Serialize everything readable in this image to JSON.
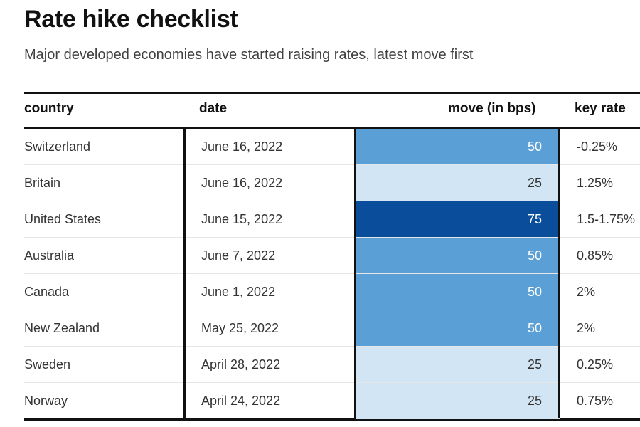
{
  "title": "Rate hike checklist",
  "subtitle": "Major developed economies have started raising rates, latest move first",
  "columns": {
    "country": "country",
    "date": "date",
    "move": "move (in bps)",
    "key_rate": "key rate"
  },
  "colors": {
    "move_25": "#d2e5f4",
    "move_50": "#5a9fd6",
    "move_75": "#0a4d9a",
    "text_on_light": "#333333",
    "text_on_dark": "#ffffff"
  },
  "chart_data": {
    "type": "table",
    "title": "Rate hike checklist",
    "subtitle": "Major developed economies have started raising rates, latest move first",
    "columns": [
      "country",
      "date",
      "move (in bps)",
      "key rate"
    ],
    "rows": [
      {
        "country": "Switzerland",
        "date": "June 16, 2022",
        "move": 50,
        "key_rate": "-0.25%"
      },
      {
        "country": "Britain",
        "date": "June 16, 2022",
        "move": 25,
        "key_rate": "1.25%"
      },
      {
        "country": "United States",
        "date": "June 15, 2022",
        "move": 75,
        "key_rate": "1.5-1.75%"
      },
      {
        "country": "Australia",
        "date": "June 7, 2022",
        "move": 50,
        "key_rate": "0.85%"
      },
      {
        "country": "Canada",
        "date": "June 1, 2022",
        "move": 50,
        "key_rate": "2%"
      },
      {
        "country": "New Zealand",
        "date": "May 25, 2022",
        "move": 50,
        "key_rate": "2%"
      },
      {
        "country": "Sweden",
        "date": "April 28, 2022",
        "move": 25,
        "key_rate": "0.25%"
      },
      {
        "country": "Norway",
        "date": "April 24, 2022",
        "move": 25,
        "key_rate": "0.75%"
      }
    ]
  }
}
